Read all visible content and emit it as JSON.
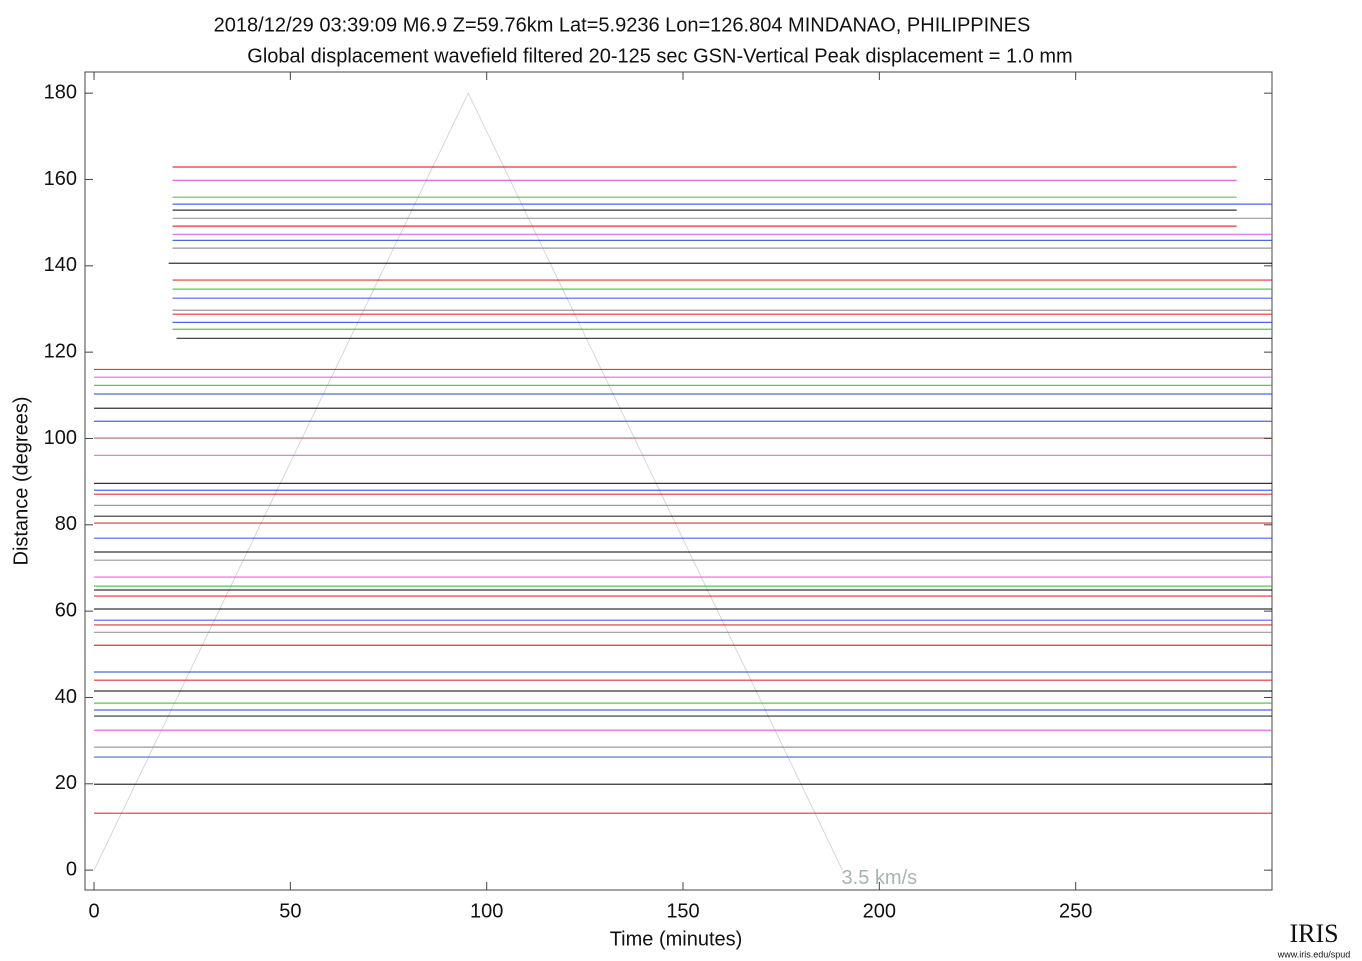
{
  "chart_data": {
    "type": "record-section",
    "title": "2018/12/29  03:39:09  M6.9  Z=59.76km  Lat=5.9236 Lon=126.804  MINDANAO, PHILIPPINES",
    "subtitle": "Global displacement wavefield     filtered 20-125 sec    GSN-Vertical    Peak displacement = 1.0 mm",
    "x_label": "Time (minutes)",
    "y_label": "Distance (degrees)",
    "xlim": [
      -2.3,
      300
    ],
    "ylim": [
      -4.6,
      184.9
    ],
    "xticks": [
      0,
      50,
      100,
      150,
      200,
      250
    ],
    "yticks": [
      0,
      20,
      40,
      60,
      80,
      100,
      120,
      140,
      160,
      180
    ],
    "traces": [
      {
        "distance": 162.9,
        "color": "#e00000",
        "start": 20,
        "end": 291
      },
      {
        "distance": 159.8,
        "color": "#e040e0",
        "start": 20,
        "end": 291
      },
      {
        "distance": 155.9,
        "color": "#20c020",
        "start": 20,
        "end": 291
      },
      {
        "distance": 154.3,
        "color": "#2040e0",
        "start": 20,
        "end": 300
      },
      {
        "distance": 152.9,
        "color": "#000000",
        "start": 20,
        "end": 291
      },
      {
        "distance": 151.0,
        "color": "#808080",
        "start": 20,
        "end": 300
      },
      {
        "distance": 149.2,
        "color": "#e00000",
        "start": 20,
        "end": 291
      },
      {
        "distance": 147.3,
        "color": "#e040e0",
        "start": 20,
        "end": 300
      },
      {
        "distance": 145.9,
        "color": "#2040e0",
        "start": 20,
        "end": 300
      },
      {
        "distance": 144.1,
        "color": "#808080",
        "start": 20,
        "end": 300
      },
      {
        "distance": 140.6,
        "color": "#000000",
        "start": 19,
        "end": 300
      },
      {
        "distance": 136.7,
        "color": "#e00000",
        "start": 20,
        "end": 300
      },
      {
        "distance": 134.6,
        "color": "#20c020",
        "start": 20,
        "end": 300
      },
      {
        "distance": 132.5,
        "color": "#2040e0",
        "start": 20,
        "end": 300
      },
      {
        "distance": 129.7,
        "color": "#808080",
        "start": 20,
        "end": 300
      },
      {
        "distance": 128.8,
        "color": "#e00000",
        "start": 20,
        "end": 300
      },
      {
        "distance": 126.9,
        "color": "#2040e0",
        "start": 20,
        "end": 300
      },
      {
        "distance": 125.3,
        "color": "#20c020",
        "start": 20,
        "end": 300
      },
      {
        "distance": 123.2,
        "color": "#000000",
        "start": 21,
        "end": 300
      },
      {
        "distance": 116.0,
        "color": "#e00000",
        "start": 0,
        "end": 300
      },
      {
        "distance": 114.2,
        "color": "#e040e0",
        "start": 0,
        "end": 300
      },
      {
        "distance": 112.3,
        "color": "#20c020",
        "start": 0,
        "end": 300
      },
      {
        "distance": 110.3,
        "color": "#2040e0",
        "start": 0,
        "end": 300
      },
      {
        "distance": 107.0,
        "color": "#000000",
        "start": 0,
        "end": 300
      },
      {
        "distance": 104.0,
        "color": "#2040e0",
        "start": 0,
        "end": 300
      },
      {
        "distance": 100.1,
        "color": "#a04040",
        "start": 0,
        "end": 300
      },
      {
        "distance": 96.1,
        "color": "#e040e0",
        "start": 0,
        "end": 300
      },
      {
        "distance": 89.6,
        "color": "#000000",
        "start": 0,
        "end": 300
      },
      {
        "distance": 88.0,
        "color": "#2040e0",
        "start": 0,
        "end": 300
      },
      {
        "distance": 87.1,
        "color": "#e00000",
        "start": 0,
        "end": 300
      },
      {
        "distance": 84.5,
        "color": "#808080",
        "start": 0,
        "end": 300
      },
      {
        "distance": 82.0,
        "color": "#000000",
        "start": 0,
        "end": 300
      },
      {
        "distance": 80.4,
        "color": "#e00000",
        "start": 0,
        "end": 300
      },
      {
        "distance": 76.9,
        "color": "#2040e0",
        "start": 0,
        "end": 300
      },
      {
        "distance": 73.7,
        "color": "#000000",
        "start": 0,
        "end": 300
      },
      {
        "distance": 71.8,
        "color": "#808080",
        "start": 0,
        "end": 300
      },
      {
        "distance": 67.9,
        "color": "#e040e0",
        "start": 0,
        "end": 300
      },
      {
        "distance": 65.8,
        "color": "#20c020",
        "start": 0,
        "end": 300
      },
      {
        "distance": 64.9,
        "color": "#000000",
        "start": 0,
        "end": 300
      },
      {
        "distance": 63.5,
        "color": "#e00000",
        "start": 0,
        "end": 300
      },
      {
        "distance": 60.5,
        "color": "#000000",
        "start": 0,
        "end": 300
      },
      {
        "distance": 57.9,
        "color": "#2040e0",
        "start": 0,
        "end": 300
      },
      {
        "distance": 56.8,
        "color": "#e00000",
        "start": 0,
        "end": 300
      },
      {
        "distance": 55.1,
        "color": "#808080",
        "start": 0,
        "end": 300
      },
      {
        "distance": 52.1,
        "color": "#e00000",
        "start": 0,
        "end": 300
      },
      {
        "distance": 45.9,
        "color": "#2040e0",
        "start": 0,
        "end": 300
      },
      {
        "distance": 44.0,
        "color": "#e00000",
        "start": 0,
        "end": 300
      },
      {
        "distance": 41.5,
        "color": "#000000",
        "start": 0,
        "end": 300
      },
      {
        "distance": 38.7,
        "color": "#20c020",
        "start": 0,
        "end": 300
      },
      {
        "distance": 37.1,
        "color": "#2040e0",
        "start": 0,
        "end": 300
      },
      {
        "distance": 35.7,
        "color": "#000000",
        "start": 0,
        "end": 300
      },
      {
        "distance": 32.4,
        "color": "#e040e0",
        "start": 0,
        "end": 300
      },
      {
        "distance": 28.5,
        "color": "#808080",
        "start": 0,
        "end": 300
      },
      {
        "distance": 26.2,
        "color": "#2040e0",
        "start": 0,
        "end": 300
      },
      {
        "distance": 19.9,
        "color": "#000000",
        "start": 0,
        "end": 300
      },
      {
        "distance": 13.2,
        "color": "#e00000",
        "start": 0,
        "end": 300
      }
    ],
    "velocity_line": {
      "label": "3.5 km/s",
      "x": [
        0,
        95.3,
        190.6
      ],
      "y": [
        0,
        180,
        0
      ],
      "label_x": 200,
      "label_y": -2
    },
    "logo": "IRIS",
    "logo_url": "www.iris.edu/spud"
  }
}
